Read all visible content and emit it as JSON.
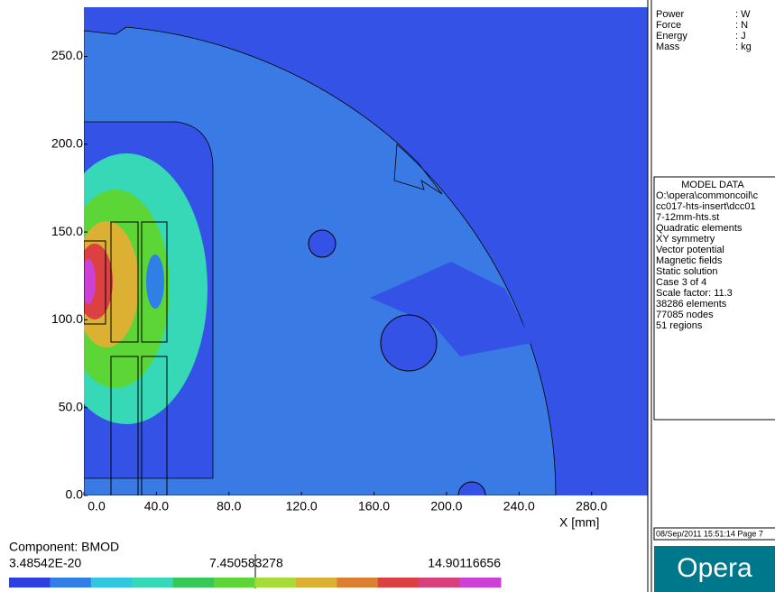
{
  "plot": {
    "x_label": "X [mm]",
    "xlim": [
      0,
      311
    ],
    "ylim": [
      0,
      278
    ],
    "xticks": [
      {
        "value": 0,
        "label": "0.0"
      },
      {
        "value": 40,
        "label": "40.0"
      },
      {
        "value": 80,
        "label": "80.0"
      },
      {
        "value": 120,
        "label": "120.0"
      },
      {
        "value": 160,
        "label": "160.0"
      },
      {
        "value": 200,
        "label": "200.0"
      },
      {
        "value": 240,
        "label": "240.0"
      },
      {
        "value": 280,
        "label": "280.0"
      }
    ],
    "yticks": [
      {
        "value": 0,
        "label": "0.0"
      },
      {
        "value": 50,
        "label": "50.0"
      },
      {
        "value": 100,
        "label": "100.0"
      },
      {
        "value": 150,
        "label": "150.0"
      },
      {
        "value": 200,
        "label": "200.0"
      },
      {
        "value": 250,
        "label": "250.0"
      }
    ]
  },
  "colorbar": {
    "title": "Component: BMOD",
    "labels": [
      "3.48542E-20",
      "7.450583278",
      "14.90116656"
    ],
    "colors": [
      "#2c3fe0",
      "#2f7fe6",
      "#32c7e0",
      "#36d8b8",
      "#36c858",
      "#5cd636",
      "#a6dc38",
      "#dcb032",
      "#dc7f30",
      "#dc4040",
      "#d8407c",
      "#cc40d6"
    ]
  },
  "units": [
    {
      "name": "Power",
      "unit": ": W"
    },
    {
      "name": "Force",
      "unit": ": N"
    },
    {
      "name": "Energy",
      "unit": ": J"
    },
    {
      "name": "Mass",
      "unit": ": kg"
    }
  ],
  "model_data": {
    "title": "MODEL DATA",
    "lines": [
      "O:\\opera\\commoncoil\\c",
      "cc017-hts-insert\\dcc01",
      "7-12mm-hts.st",
      "Quadratic elements",
      "XY symmetry",
      "Vector potential",
      "Magnetic fields",
      "Static solution",
      "Case 3 of 4",
      "Scale factor: 11.3",
      "38286 elements",
      "77085 nodes",
      "51 regions"
    ]
  },
  "footer": "08/Sep/2011 15:51:14 Page 7",
  "logo": "Opera"
}
